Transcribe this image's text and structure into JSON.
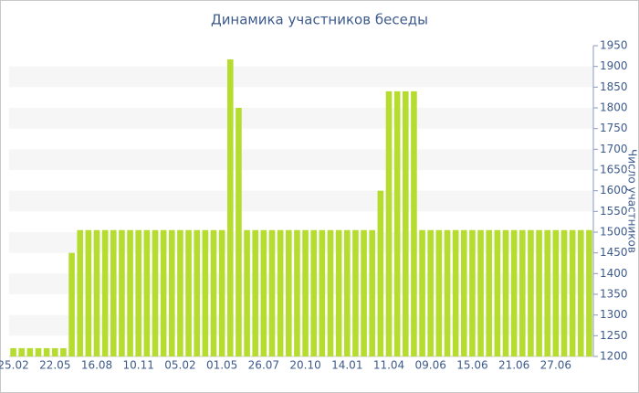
{
  "chart_data": {
    "type": "bar",
    "title": "Динамика участников беседы",
    "y_axis_label": "Число участников",
    "categories": [
      "25.02",
      null,
      null,
      null,
      null,
      "22.05",
      null,
      null,
      null,
      null,
      "16.08",
      null,
      null,
      null,
      null,
      "10.11",
      null,
      null,
      null,
      null,
      "05.02",
      null,
      null,
      null,
      null,
      "01.05",
      null,
      null,
      null,
      null,
      "26.07",
      null,
      null,
      null,
      null,
      "20.10",
      null,
      null,
      null,
      null,
      "14.01",
      null,
      null,
      null,
      null,
      "11.04",
      null,
      null,
      null,
      null,
      "09.06",
      null,
      null,
      null,
      null,
      "15.06",
      null,
      null,
      null,
      null,
      "21.06",
      null,
      null,
      null,
      null,
      "27.06",
      null,
      null,
      null,
      null
    ],
    "values": [
      1220,
      1220,
      1220,
      1220,
      1220,
      1220,
      1220,
      1450,
      1505,
      1505,
      1505,
      1505,
      1505,
      1505,
      1505,
      1505,
      1505,
      1505,
      1505,
      1505,
      1505,
      1505,
      1505,
      1505,
      1505,
      1505,
      1917,
      1800,
      1505,
      1505,
      1505,
      1505,
      1505,
      1505,
      1505,
      1505,
      1505,
      1505,
      1505,
      1505,
      1505,
      1505,
      1505,
      1505,
      1600,
      1840,
      1840,
      1840,
      1840,
      1505,
      1505,
      1505,
      1505,
      1505,
      1505,
      1505,
      1505,
      1505,
      1505,
      1505,
      1505,
      1505,
      1505,
      1505,
      1505,
      1505,
      1505,
      1505,
      1505,
      1505
    ],
    "color": "#b5dc2f",
    "ylim": [
      1200,
      1950
    ],
    "yticks": [
      1200,
      1250,
      1300,
      1350,
      1400,
      1450,
      1500,
      1550,
      1600,
      1650,
      1700,
      1750,
      1800,
      1850,
      1900,
      1950
    ],
    "grid": true,
    "y_axis_side": "right"
  }
}
